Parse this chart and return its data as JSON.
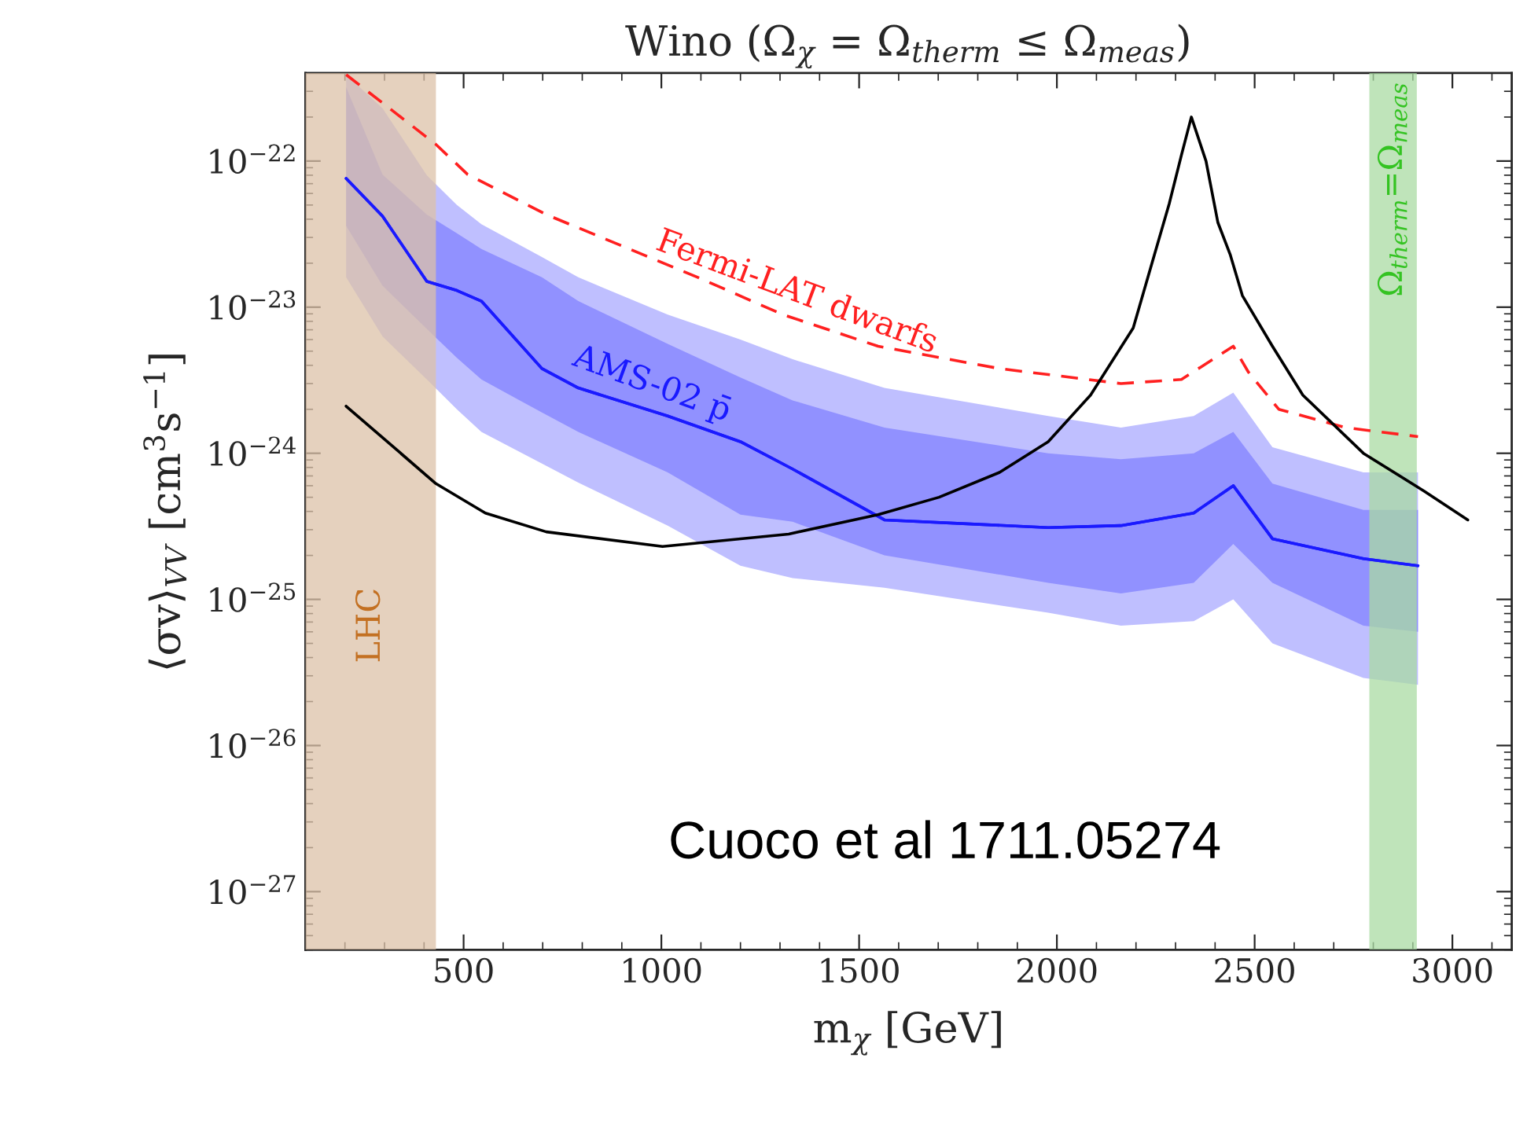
{
  "chart_data": {
    "type": "line",
    "title": "Wino (Ω$_{χ}$ = Ω$_{therm}$ ≤ Ω$_{meas}$)",
    "xlabel": "m$_{χ}$ [GeV]",
    "ylabel": "⟨σv⟩$_{VV}$ [cm$^{3}$s$^{−1}$]",
    "log": "y",
    "grid": false,
    "xlim": [
      100,
      3150
    ],
    "xticks": [
      500,
      1000,
      1500,
      2000,
      2500,
      3000
    ],
    "ylim": [
      4e-28,
      4e-22
    ],
    "yticks": [
      {
        "value": 1e-27,
        "label": "10$^{−27}$"
      },
      {
        "value": 1e-26,
        "label": "10$^{−26}$"
      },
      {
        "value": 1e-25,
        "label": "10$^{−25}$"
      },
      {
        "value": 1e-24,
        "label": "10$^{−24}$"
      },
      {
        "value": 1e-23,
        "label": "10$^{−23}$"
      },
      {
        "value": 1e-22,
        "label": "10$^{−22}$"
      }
    ],
    "series": [
      {
        "color": "#1a1aff",
        "line_style": "solid",
        "x": [
          203,
          295,
          407,
          483,
          545,
          698,
          790,
          1016,
          1200,
          1332,
          1564,
          1978,
          2162,
          2346,
          2446,
          2545,
          2775,
          2913
        ],
        "values": [
          7.6e-23,
          4.2e-23,
          1.5e-23,
          1.3e-23,
          1.1e-23,
          3.8e-24,
          2.8e-24,
          1.8e-24,
          1.2e-24,
          7.8e-25,
          3.5e-25,
          3.1e-25,
          3.2e-25,
          3.9e-25,
          6e-25,
          2.6e-25,
          1.9e-25,
          1.7e-25
        ],
        "upper": [
          3.9e-22,
          2.3e-22,
          8e-23,
          5e-23,
          3.7e-23,
          2.2e-23,
          1.6e-23,
          8.9e-24,
          6e-24,
          4.4e-24,
          2.8e-24,
          1.8e-24,
          1.5e-24,
          1.8e-24,
          2.6e-24,
          1.1e-24,
          7.4e-25,
          7.4e-25
        ],
        "lower": [
          1.6e-23,
          6.3e-24,
          3.2e-24,
          2e-24,
          1.4e-24,
          8.5e-25,
          6.3e-25,
          3.2e-25,
          1.7e-25,
          1.4e-25,
          1.2e-25,
          8.1e-26,
          6.6e-26,
          7.1e-26,
          1e-25,
          5e-26,
          2.9e-26,
          2.6e-26
        ]
      },
      {
        "name": "AMS-02 p̄",
        "color": "#1a1aff",
        "line_style": "solid",
        "x": [
          203,
          295,
          407,
          483,
          545,
          698,
          790,
          1016,
          1200,
          1332,
          1564,
          1978,
          2162,
          2346,
          2446,
          2545,
          2775,
          2913
        ],
        "values": [
          7.6e-23,
          4.2e-23,
          1.5e-23,
          1.3e-23,
          1.1e-23,
          3.8e-24,
          2.8e-24,
          1.8e-24,
          1.2e-24,
          7.8e-25,
          3.5e-25,
          3.1e-25,
          3.2e-25,
          3.9e-25,
          6e-25,
          2.6e-25,
          1.9e-25,
          1.7e-25
        ],
        "upper": [
          3.2e-22,
          8.1e-23,
          4.3e-23,
          3.2e-23,
          2.5e-23,
          1.6e-23,
          1.1e-23,
          5.6e-24,
          3.3e-24,
          2.3e-24,
          1.5e-24,
          1e-24,
          9.1e-25,
          1e-24,
          1.4e-24,
          6.2e-25,
          4.1e-25,
          4.1e-25
        ],
        "lower": [
          3.6e-23,
          1.4e-23,
          7.1e-24,
          4.5e-24,
          3.2e-24,
          1.9e-24,
          1.4e-24,
          7.4e-25,
          3.8e-25,
          3.4e-25,
          2e-25,
          1.3e-25,
          1.1e-25,
          1.3e-25,
          2.4e-25,
          1.3e-25,
          6.6e-26,
          6e-26
        ]
      },
      {
        "name": "Fermi-LAT dwarfs",
        "color": "#ff2020",
        "line_style": "dashed",
        "x": [
          203,
          430,
          510,
          709,
          862,
          1092,
          1307,
          1548,
          1855,
          2162,
          2315,
          2446,
          2484,
          2561,
          2729,
          2913
        ],
        "values": [
          3.9e-22,
          1.3e-22,
          8.1e-23,
          4.3e-23,
          2.9e-23,
          1.6e-23,
          8.9e-24,
          5.4e-24,
          3.8e-24,
          3e-24,
          3.2e-24,
          5.4e-24,
          3.6e-24,
          2e-24,
          1.5e-24,
          1.3e-24
        ]
      },
      {
        "color": "#000000",
        "line_style": "solid",
        "x": [
          203,
          430,
          555,
          709,
          1003,
          1322,
          1548,
          1702,
          1855,
          1978,
          2085,
          2193,
          2238,
          2284,
          2315,
          2340,
          2377,
          2407,
          2438,
          2469,
          2545,
          2622,
          2775,
          2929,
          3039
        ],
        "values": [
          2.1e-24,
          6.2e-25,
          3.9e-25,
          2.9e-25,
          2.3e-25,
          2.8e-25,
          3.8e-25,
          5e-25,
          7.4e-25,
          1.2e-24,
          2.5e-24,
          7.2e-24,
          1.9e-23,
          5.1e-23,
          1.1e-22,
          2e-22,
          1e-22,
          3.8e-23,
          2.3e-23,
          1.2e-23,
          5.4e-24,
          2.5e-24,
          1e-24,
          5.5e-25,
          3.5e-25
        ]
      }
    ],
    "bands": [
      {
        "axis": "x",
        "from": 100,
        "to": 430,
        "label": "LHC",
        "color": "#dcc1a8"
      },
      {
        "axis": "x",
        "from": 2790,
        "to": 2910,
        "label": "Ω$_{therm}$=Ω$_{meas}$",
        "color": "#a9dba3"
      }
    ],
    "annotations": [
      "Cuoco et al 1711.05274"
    ]
  }
}
